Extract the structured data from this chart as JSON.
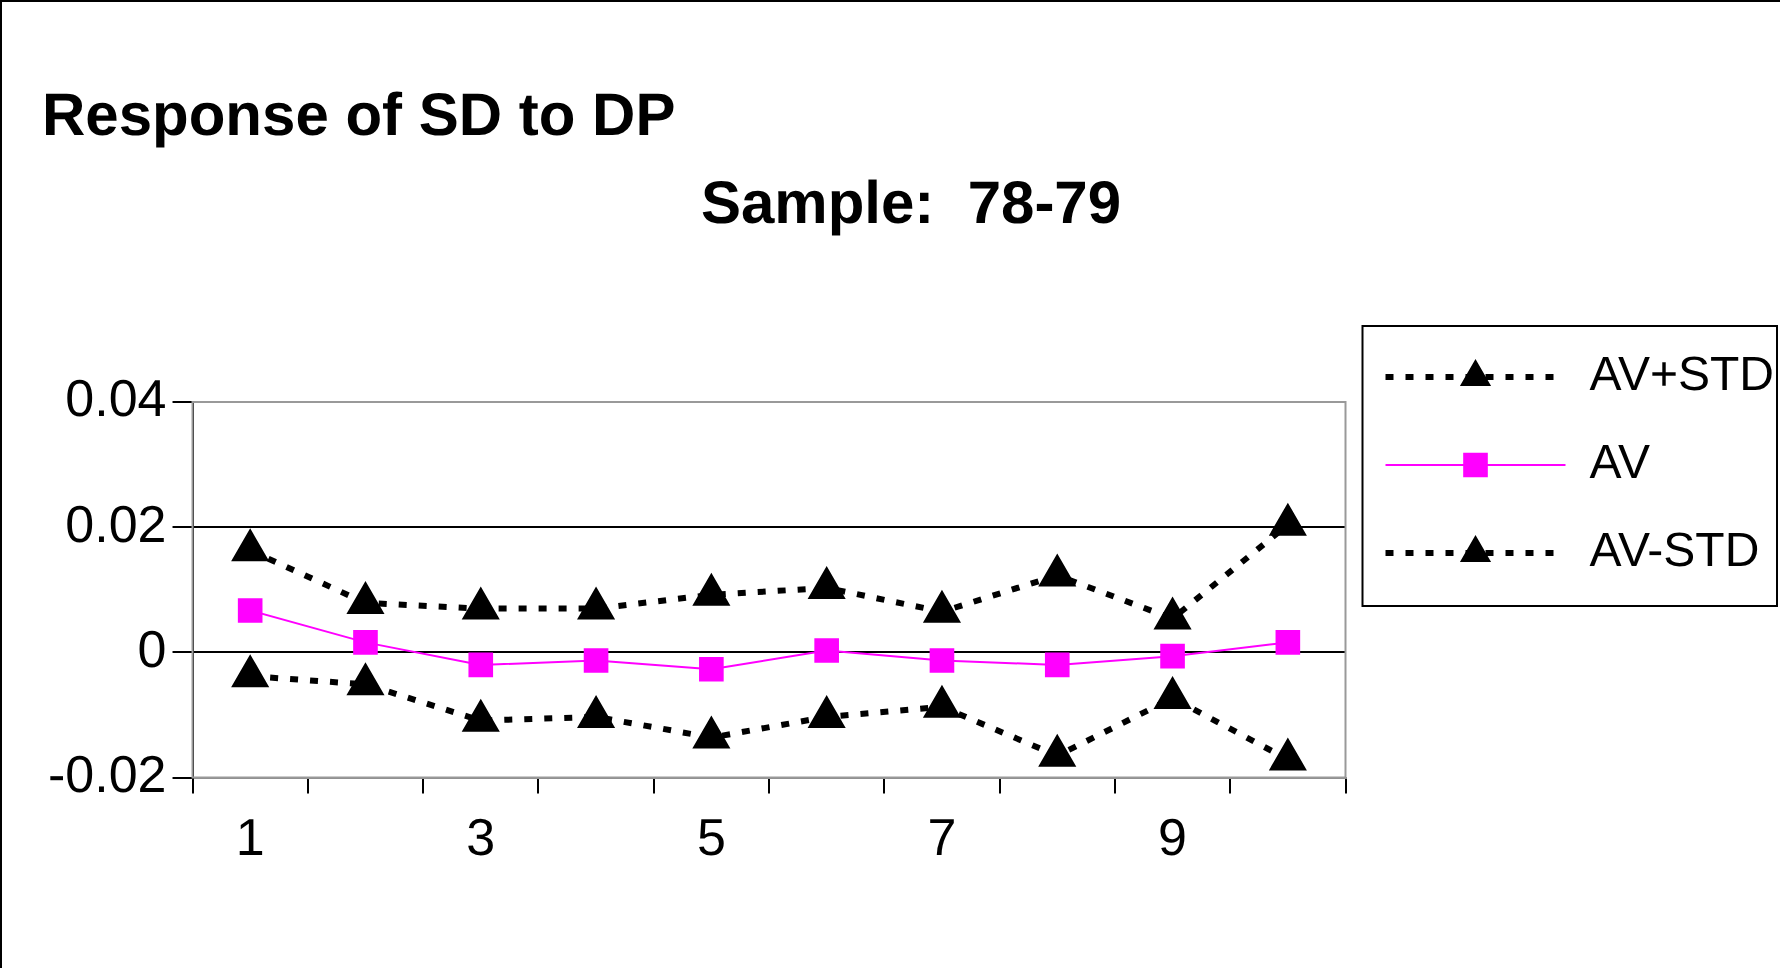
{
  "chart_data": {
    "type": "line",
    "title": "Response of SD to DP",
    "subtitle": "Sample:  78-79",
    "categories": [
      "1",
      null,
      "3",
      null,
      "5",
      null,
      "7",
      null,
      "9",
      null
    ],
    "series": [
      {
        "name": "AV+STD",
        "color": "#000000",
        "marker": "triangle",
        "line_style": "dotted",
        "values": [
          0.0163,
          0.0079,
          0.007,
          0.007,
          0.0092,
          0.0103,
          0.0065,
          0.0123,
          0.0054,
          0.0204
        ]
      },
      {
        "name": "AV",
        "color": "#ff00ff",
        "marker": "square",
        "line_style": "solid",
        "values": [
          0.0067,
          0.0016,
          -0.002,
          -0.0013,
          -0.0027,
          0.0003,
          -0.0013,
          -0.002,
          -0.0006,
          0.0016
        ]
      },
      {
        "name": "AV-STD",
        "color": "#000000",
        "marker": "triangle",
        "line_style": "dotted",
        "values": [
          -0.0038,
          -0.0051,
          -0.0109,
          -0.0103,
          -0.0136,
          -0.0103,
          -0.0087,
          -0.0165,
          -0.0073,
          -0.0171
        ]
      }
    ],
    "ylim": [
      -0.02,
      0.04
    ],
    "yticks": [
      {
        "value": -0.02,
        "label": "-0.02"
      },
      {
        "value": 0,
        "label": "0"
      },
      {
        "value": 0.02,
        "label": "0.02"
      },
      {
        "value": 0.04,
        "label": "0.04"
      }
    ],
    "grid": "y",
    "legend": "right"
  }
}
